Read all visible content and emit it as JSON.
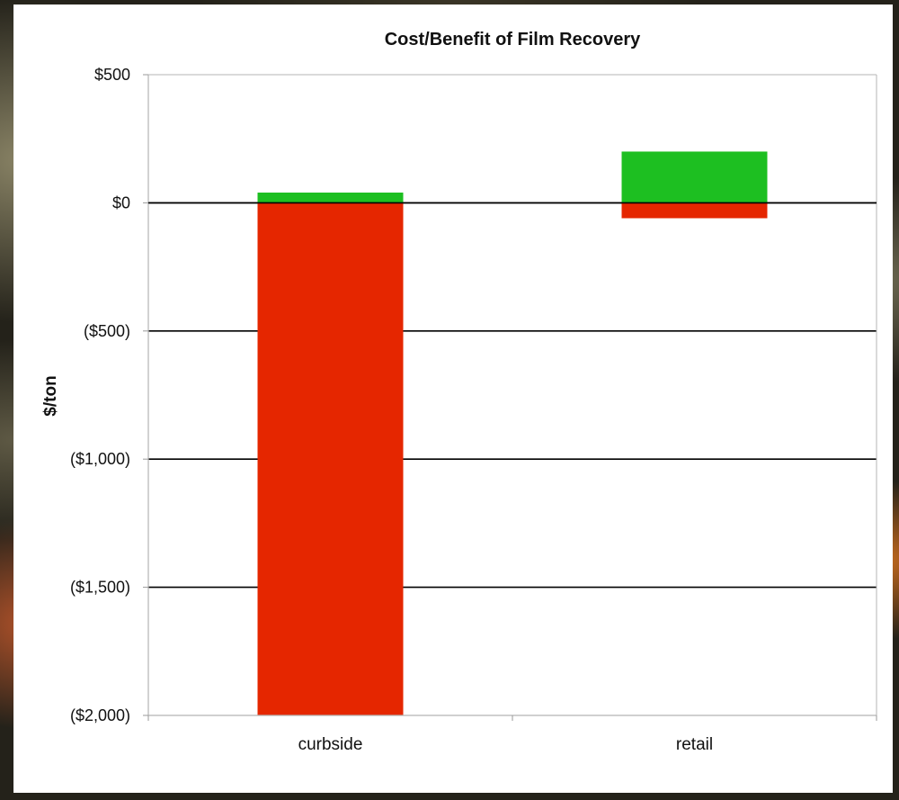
{
  "chart_data": {
    "type": "bar",
    "stacked": true,
    "title": "Cost/Benefit of Film Recovery",
    "xlabel": "",
    "ylabel": "$/ton",
    "categories": [
      "curbside",
      "retail"
    ],
    "series": [
      {
        "color": "#e52600",
        "values": [
          -2000,
          -60
        ]
      },
      {
        "color": "#1dbf21",
        "values": [
          40,
          200
        ]
      }
    ],
    "ylim": [
      -2000,
      500
    ],
    "yticks": [
      500,
      0,
      -500,
      -1000,
      -1500,
      -2000
    ],
    "ytick_labels": [
      "$500",
      "$0",
      "($500)",
      "($1,000)",
      "($1,500)",
      "($2,000)"
    ],
    "grid": true,
    "legend": "none"
  }
}
